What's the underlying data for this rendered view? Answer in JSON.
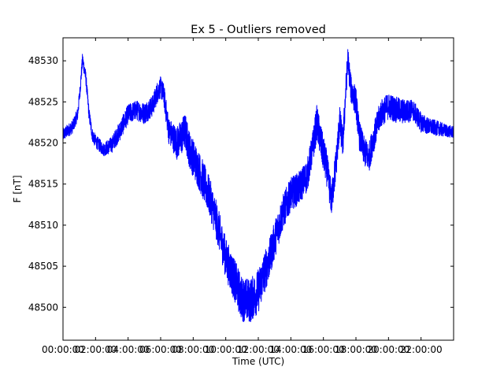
{
  "chart_data": {
    "type": "line",
    "title": "Ex 5 - Outliers removed",
    "xlabel": "Time (UTC)",
    "ylabel": "F [nT]",
    "xlim": [
      0,
      24
    ],
    "ylim": [
      48496.0,
      48532.8
    ],
    "x_ticks": [
      0,
      2,
      4,
      6,
      8,
      10,
      12,
      14,
      16,
      18,
      20,
      22
    ],
    "x_tick_labels": [
      "00:00:00",
      "02:00:00",
      "04:00:00",
      "06:00:00",
      "08:00:00",
      "10:00:00",
      "12:00:00",
      "14:00:00",
      "16:00:00",
      "18:00:00",
      "20:00:00",
      "22:00:00"
    ],
    "y_ticks": [
      48500,
      48505,
      48510,
      48515,
      48520,
      48525,
      48530
    ],
    "y_tick_labels": [
      "48500",
      "48505",
      "48510",
      "48515",
      "48520",
      "48525",
      "48530"
    ],
    "grid": false,
    "line_color": "#0000ff",
    "series": [
      {
        "x": [
          0,
          0.3,
          0.6,
          0.9,
          1.05,
          1.2,
          1.4,
          1.6,
          1.8,
          2.0,
          2.2,
          2.5,
          3.0,
          3.5,
          4.0,
          4.5,
          5.0,
          5.5,
          5.8,
          6.0,
          6.2,
          6.5,
          7.0,
          7.3,
          7.5,
          7.8,
          8.1,
          8.5,
          9.0,
          9.5,
          10.0,
          10.5,
          11.0,
          11.5,
          12.0,
          12.3,
          12.7,
          13.0,
          13.5,
          14.0,
          14.5,
          15.0,
          15.3,
          15.6,
          15.9,
          16.2,
          16.5,
          16.8,
          17.0,
          17.2,
          17.35,
          17.5,
          17.7,
          18.0,
          18.2,
          18.5,
          18.8,
          19.0,
          19.5,
          20.0,
          20.5,
          21.0,
          21.5,
          22.0,
          22.5,
          23.0,
          23.5,
          24.0
        ],
        "y": [
          48521.0,
          48521.5,
          48522.0,
          48523.5,
          48526.5,
          48530.2,
          48528.0,
          48523.5,
          48521.0,
          48520.2,
          48519.8,
          48519.2,
          48519.8,
          48521.5,
          48523.5,
          48524.0,
          48523.6,
          48524.5,
          48526.2,
          48526.8,
          48525.8,
          48521.5,
          48520.0,
          48520.8,
          48521.5,
          48519.0,
          48517.8,
          48516.0,
          48513.5,
          48510.0,
          48506.0,
          48503.5,
          48501.0,
          48500.8,
          48502.0,
          48503.8,
          48506.0,
          48508.2,
          48511.5,
          48513.8,
          48514.5,
          48516.0,
          48519.0,
          48522.5,
          48519.5,
          48517.0,
          48513.0,
          48518.0,
          48522.5,
          48520.0,
          48525.5,
          48530.2,
          48526.5,
          48525.0,
          48521.0,
          48519.0,
          48518.2,
          48520.0,
          48523.5,
          48524.5,
          48524.0,
          48523.8,
          48524.0,
          48522.5,
          48522.0,
          48521.8,
          48521.5,
          48521.3
        ],
        "noise_amplitude": [
          0.8,
          0.8,
          0.8,
          0.8,
          0.8,
          0.8,
          0.8,
          0.8,
          0.8,
          0.8,
          0.8,
          0.8,
          1.0,
          1.2,
          1.2,
          1.2,
          1.3,
          1.3,
          1.3,
          1.3,
          1.4,
          1.6,
          2.0,
          2.2,
          2.2,
          2.3,
          2.3,
          2.4,
          2.4,
          2.4,
          2.5,
          2.6,
          2.7,
          2.7,
          2.7,
          2.6,
          2.4,
          2.3,
          2.2,
          2.0,
          2.0,
          2.0,
          2.0,
          2.2,
          2.2,
          2.2,
          2.0,
          2.0,
          2.0,
          1.9,
          1.8,
          1.6,
          1.7,
          1.8,
          1.8,
          1.8,
          1.8,
          1.8,
          1.7,
          1.6,
          1.6,
          1.5,
          1.3,
          1.2,
          1.0,
          0.9,
          0.8,
          0.7
        ]
      }
    ]
  }
}
